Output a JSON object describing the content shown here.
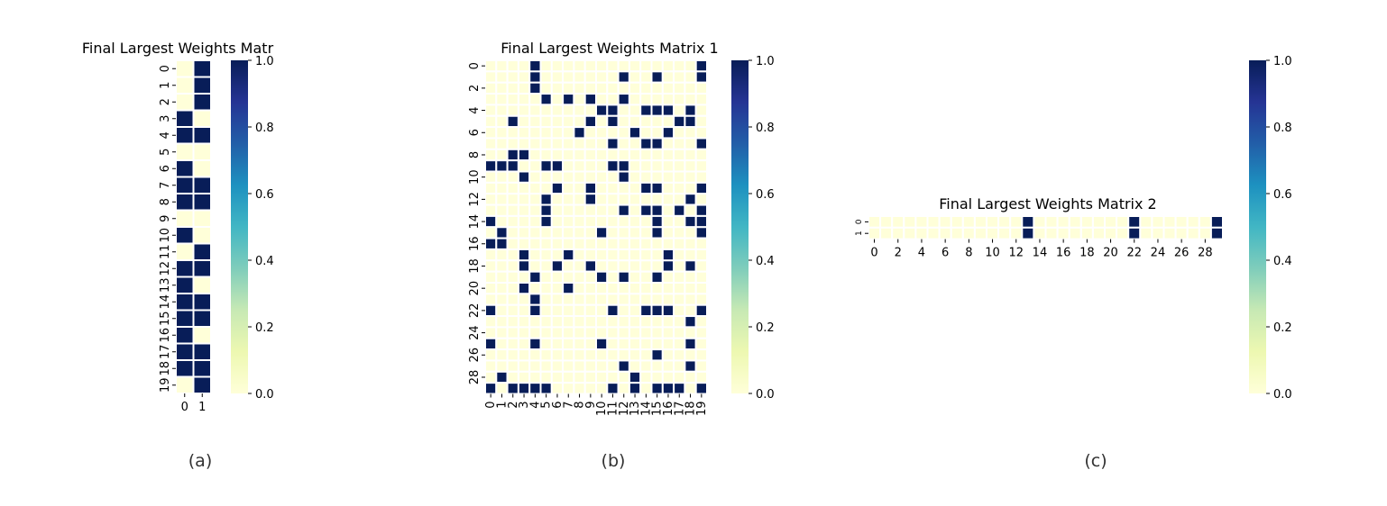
{
  "colormap": {
    "name": "YlGnBu",
    "stops": [
      "#ffffd9",
      "#edf8b1",
      "#c7e9b4",
      "#7fcdbb",
      "#41b6c4",
      "#1d91c0",
      "#225ea8",
      "#253494",
      "#081d58"
    ],
    "cell_on_color": "#081d58",
    "cell_off_color": "#ffffd9",
    "grid_line_color": "#ffffff"
  },
  "chart_data": [
    {
      "type": "heatmap",
      "title": "Final Largest Weights Matr",
      "caption": "(a)",
      "rows": 20,
      "cols": 2,
      "x_ticks": [
        "0",
        "1"
      ],
      "y_ticks": [
        "0",
        "1",
        "2",
        "3",
        "4",
        "5",
        "6",
        "7",
        "8",
        "9",
        "10",
        "11",
        "12",
        "13",
        "14",
        "15",
        "16",
        "17",
        "18",
        "19"
      ],
      "colorbar": {
        "vmin": 0.0,
        "vmax": 1.0,
        "ticks": [
          "0.0",
          "0.2",
          "0.4",
          "0.6",
          "0.8",
          "1.0"
        ]
      },
      "grid": true,
      "values": [
        [
          0,
          1
        ],
        [
          0,
          1
        ],
        [
          0,
          1
        ],
        [
          1,
          0
        ],
        [
          1,
          1
        ],
        [
          0,
          0
        ],
        [
          1,
          0
        ],
        [
          1,
          1
        ],
        [
          1,
          1
        ],
        [
          0,
          0
        ],
        [
          1,
          0
        ],
        [
          0,
          1
        ],
        [
          1,
          1
        ],
        [
          1,
          0
        ],
        [
          1,
          1
        ],
        [
          1,
          1
        ],
        [
          1,
          0
        ],
        [
          1,
          1
        ],
        [
          1,
          1
        ],
        [
          0,
          1
        ]
      ]
    },
    {
      "type": "heatmap",
      "title": "Final Largest Weights Matrix 1",
      "caption": "(b)",
      "rows": 30,
      "cols": 20,
      "x_ticks": [
        "0",
        "1",
        "2",
        "3",
        "4",
        "5",
        "6",
        "7",
        "8",
        "9",
        "10",
        "11",
        "12",
        "13",
        "14",
        "15",
        "16",
        "17",
        "18",
        "19"
      ],
      "y_ticks": [
        "0",
        "2",
        "4",
        "6",
        "8",
        "10",
        "12",
        "14",
        "16",
        "18",
        "20",
        "22",
        "24",
        "26",
        "28"
      ],
      "colorbar": {
        "vmin": 0.0,
        "vmax": 1.0,
        "ticks": [
          "0.0",
          "0.2",
          "0.4",
          "0.6",
          "0.8",
          "1.0"
        ]
      },
      "grid": true,
      "values": [
        [
          0,
          0,
          0,
          0,
          1,
          0,
          0,
          0,
          0,
          0,
          0,
          0,
          0,
          0,
          0,
          0,
          0,
          0,
          0,
          1
        ],
        [
          0,
          0,
          0,
          0,
          1,
          0,
          0,
          0,
          0,
          0,
          0,
          0,
          1,
          0,
          0,
          1,
          0,
          0,
          0,
          1
        ],
        [
          0,
          0,
          0,
          0,
          1,
          0,
          0,
          0,
          0,
          0,
          0,
          0,
          0,
          0,
          0,
          0,
          0,
          0,
          0,
          0
        ],
        [
          0,
          0,
          0,
          0,
          0,
          1,
          0,
          1,
          0,
          1,
          0,
          0,
          1,
          0,
          0,
          0,
          0,
          0,
          0,
          0
        ],
        [
          0,
          0,
          0,
          0,
          0,
          0,
          0,
          0,
          0,
          0,
          1,
          1,
          0,
          0,
          1,
          1,
          1,
          0,
          1,
          0
        ],
        [
          0,
          0,
          1,
          0,
          0,
          0,
          0,
          0,
          0,
          1,
          0,
          1,
          0,
          0,
          0,
          0,
          0,
          1,
          1,
          0
        ],
        [
          0,
          0,
          0,
          0,
          0,
          0,
          0,
          0,
          1,
          0,
          0,
          0,
          0,
          1,
          0,
          0,
          1,
          0,
          0,
          0
        ],
        [
          0,
          0,
          0,
          0,
          0,
          0,
          0,
          0,
          0,
          0,
          0,
          1,
          0,
          0,
          1,
          1,
          0,
          0,
          0,
          1
        ],
        [
          0,
          0,
          1,
          1,
          0,
          0,
          0,
          0,
          0,
          0,
          0,
          0,
          0,
          0,
          0,
          0,
          0,
          0,
          0,
          0
        ],
        [
          1,
          1,
          1,
          0,
          0,
          1,
          1,
          0,
          0,
          0,
          0,
          1,
          1,
          0,
          0,
          0,
          0,
          0,
          0,
          0
        ],
        [
          0,
          0,
          0,
          1,
          0,
          0,
          0,
          0,
          0,
          0,
          0,
          0,
          1,
          0,
          0,
          0,
          0,
          0,
          0,
          0
        ],
        [
          0,
          0,
          0,
          0,
          0,
          0,
          1,
          0,
          0,
          1,
          0,
          0,
          0,
          0,
          1,
          1,
          0,
          0,
          0,
          1
        ],
        [
          0,
          0,
          0,
          0,
          0,
          1,
          0,
          0,
          0,
          1,
          0,
          0,
          0,
          0,
          0,
          0,
          0,
          0,
          1,
          0
        ],
        [
          0,
          0,
          0,
          0,
          0,
          1,
          0,
          0,
          0,
          0,
          0,
          0,
          1,
          0,
          1,
          1,
          0,
          1,
          0,
          1
        ],
        [
          1,
          0,
          0,
          0,
          0,
          1,
          0,
          0,
          0,
          0,
          0,
          0,
          0,
          0,
          0,
          1,
          0,
          0,
          1,
          1
        ],
        [
          0,
          1,
          0,
          0,
          0,
          0,
          0,
          0,
          0,
          0,
          1,
          0,
          0,
          0,
          0,
          1,
          0,
          0,
          0,
          1
        ],
        [
          1,
          1,
          0,
          0,
          0,
          0,
          0,
          0,
          0,
          0,
          0,
          0,
          0,
          0,
          0,
          0,
          0,
          0,
          0,
          0
        ],
        [
          0,
          0,
          0,
          1,
          0,
          0,
          0,
          1,
          0,
          0,
          0,
          0,
          0,
          0,
          0,
          0,
          1,
          0,
          0,
          0
        ],
        [
          0,
          0,
          0,
          1,
          0,
          0,
          1,
          0,
          0,
          1,
          0,
          0,
          0,
          0,
          0,
          0,
          1,
          0,
          1,
          0
        ],
        [
          0,
          0,
          0,
          0,
          1,
          0,
          0,
          0,
          0,
          0,
          1,
          0,
          1,
          0,
          0,
          1,
          0,
          0,
          0,
          0
        ],
        [
          0,
          0,
          0,
          1,
          0,
          0,
          0,
          1,
          0,
          0,
          0,
          0,
          0,
          0,
          0,
          0,
          0,
          0,
          0,
          0
        ],
        [
          0,
          0,
          0,
          0,
          1,
          0,
          0,
          0,
          0,
          0,
          0,
          0,
          0,
          0,
          0,
          0,
          0,
          0,
          0,
          0
        ],
        [
          1,
          0,
          0,
          0,
          1,
          0,
          0,
          0,
          0,
          0,
          0,
          1,
          0,
          0,
          1,
          1,
          1,
          0,
          0,
          1
        ],
        [
          0,
          0,
          0,
          0,
          0,
          0,
          0,
          0,
          0,
          0,
          0,
          0,
          0,
          0,
          0,
          0,
          0,
          0,
          1,
          0
        ],
        [
          0,
          0,
          0,
          0,
          0,
          0,
          0,
          0,
          0,
          0,
          0,
          0,
          0,
          0,
          0,
          0,
          0,
          0,
          0,
          0
        ],
        [
          1,
          0,
          0,
          0,
          1,
          0,
          0,
          0,
          0,
          0,
          1,
          0,
          0,
          0,
          0,
          0,
          0,
          0,
          1,
          0
        ],
        [
          0,
          0,
          0,
          0,
          0,
          0,
          0,
          0,
          0,
          0,
          0,
          0,
          0,
          0,
          0,
          1,
          0,
          0,
          0,
          0
        ],
        [
          0,
          0,
          0,
          0,
          0,
          0,
          0,
          0,
          0,
          0,
          0,
          0,
          1,
          0,
          0,
          0,
          0,
          0,
          1,
          0
        ],
        [
          0,
          1,
          0,
          0,
          0,
          0,
          0,
          0,
          0,
          0,
          0,
          0,
          0,
          1,
          0,
          0,
          0,
          0,
          0,
          0
        ],
        [
          1,
          0,
          1,
          1,
          1,
          1,
          0,
          0,
          0,
          0,
          0,
          1,
          0,
          1,
          0,
          1,
          1,
          1,
          0,
          1
        ]
      ]
    },
    {
      "type": "heatmap",
      "title": "Final Largest Weights Matrix 2",
      "caption": "(c)",
      "rows": 2,
      "cols": 30,
      "x_ticks": [
        "0",
        "2",
        "4",
        "6",
        "8",
        "10",
        "12",
        "14",
        "16",
        "18",
        "20",
        "22",
        "24",
        "26",
        "28"
      ],
      "y_ticks": [
        "0",
        "1"
      ],
      "colorbar": {
        "vmin": 0.0,
        "vmax": 1.0,
        "ticks": [
          "0.0",
          "0.2",
          "0.4",
          "0.6",
          "0.8",
          "1.0"
        ]
      },
      "grid": true,
      "values": [
        [
          0,
          0,
          0,
          0,
          0,
          0,
          0,
          0,
          0,
          0,
          0,
          0,
          0,
          1,
          0,
          0,
          0,
          0,
          0,
          0,
          0,
          0,
          1,
          0,
          0,
          0,
          0,
          0,
          0,
          1
        ],
        [
          0,
          0,
          0,
          0,
          0,
          0,
          0,
          0,
          0,
          0,
          0,
          0,
          0,
          1,
          0,
          0,
          0,
          0,
          0,
          0,
          0,
          0,
          1,
          0,
          0,
          0,
          0,
          0,
          0,
          1
        ]
      ]
    }
  ]
}
